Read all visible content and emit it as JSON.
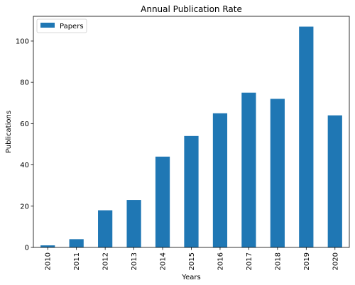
{
  "chart_data": {
    "type": "bar",
    "title": "Annual Publication Rate",
    "xlabel": "Years",
    "ylabel": "Publications",
    "categories": [
      "2010",
      "2011",
      "2012",
      "2013",
      "2014",
      "2015",
      "2016",
      "2017",
      "2018",
      "2019",
      "2020"
    ],
    "series": [
      {
        "name": "Papers",
        "values": [
          1,
          4,
          18,
          23,
          44,
          54,
          65,
          75,
          72,
          107,
          64
        ],
        "color": "#1f77b4"
      }
    ],
    "ylim": [
      0,
      112
    ],
    "yticks": [
      0,
      20,
      40,
      60,
      80,
      100
    ],
    "grid": false,
    "legend": "top-left"
  }
}
